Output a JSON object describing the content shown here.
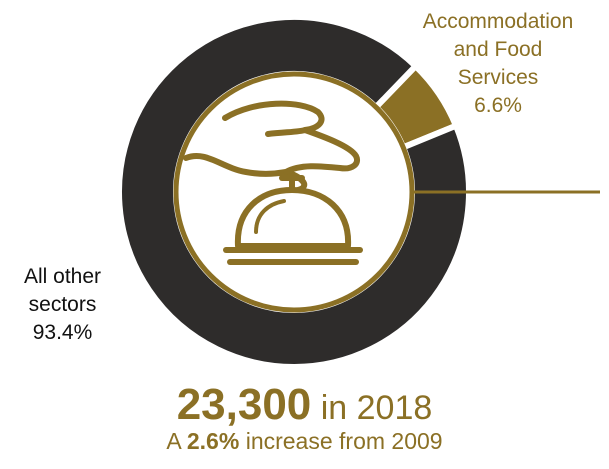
{
  "colors": {
    "accent": "#8b7025",
    "dark": "#2e2c2b",
    "text": "#111111",
    "background": "#ffffff"
  },
  "icon": "hand-over-service-bell-icon",
  "chart_data": {
    "type": "pie",
    "style": "donut",
    "categories": [
      "Accommodation and Food Services",
      "All other sectors"
    ],
    "values": [
      6.6,
      93.4
    ],
    "slice_labels": [
      {
        "lines": [
          "Accommodation",
          "and Food",
          "Services",
          "6.6%"
        ]
      },
      {
        "lines": [
          "All other",
          "sectors",
          "93.4%"
        ]
      }
    ],
    "colors": [
      "#8b7025",
      "#2e2c2b"
    ]
  },
  "headline": {
    "value": "23,300",
    "suffix": " in 2018"
  },
  "subline": {
    "prefix": "A ",
    "highlight": "2.6%",
    "suffix": " increase from 2009"
  }
}
